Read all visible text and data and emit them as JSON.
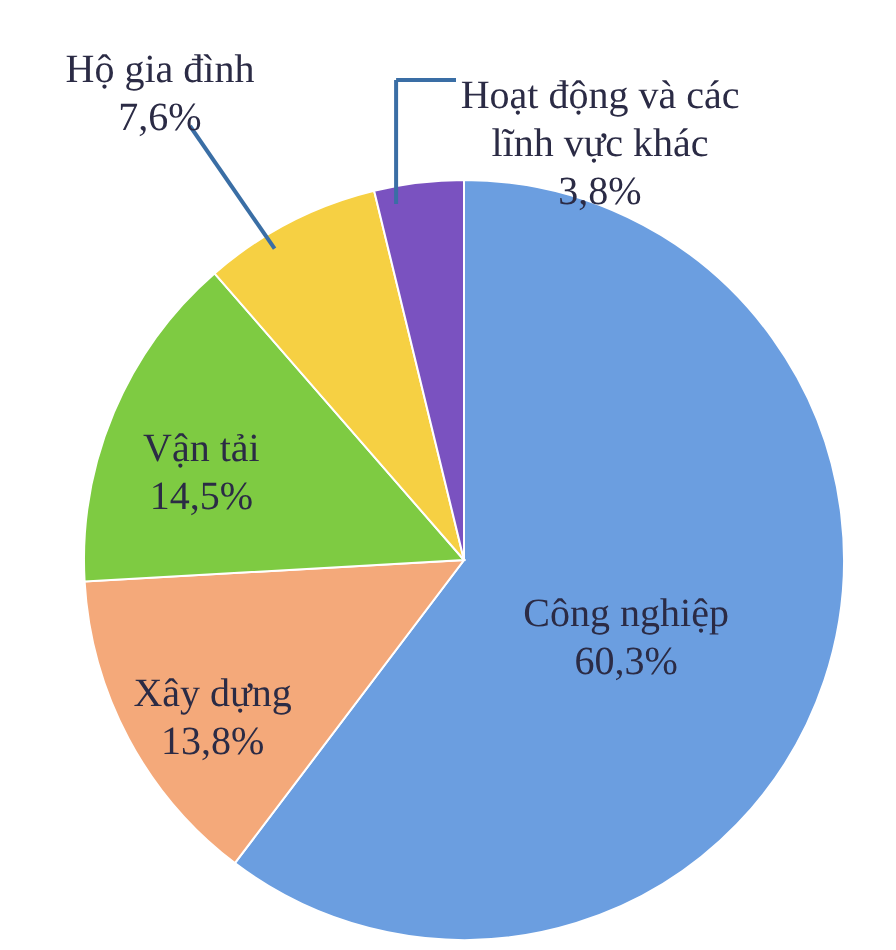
{
  "chart_data": {
    "type": "pie",
    "categories": [
      "Công nghiệp",
      "Xây dựng",
      "Vận tải",
      "Hộ gia đình",
      "Hoạt động và các lĩnh vực khác"
    ],
    "values": [
      60.3,
      13.8,
      14.5,
      7.6,
      3.8
    ],
    "colors": [
      "#6b9ee0",
      "#f4a97a",
      "#7ecb42",
      "#f6d043",
      "#7a52c0"
    ],
    "value_labels": [
      "60,3%",
      "13,8%",
      "14,5%",
      "7,6%",
      "3,8%"
    ]
  }
}
